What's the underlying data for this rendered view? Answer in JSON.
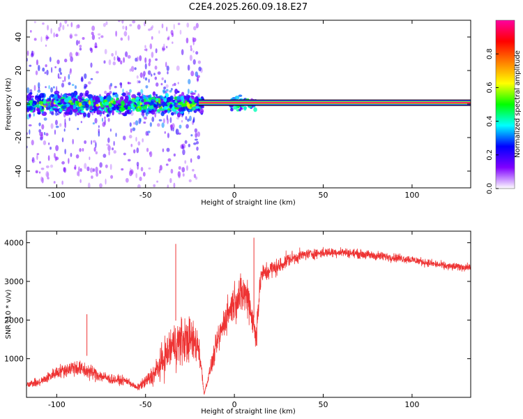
{
  "title": "C2E4.2025.260.09.18.E27",
  "chart_data": [
    {
      "type": "heatmap",
      "xlabel": "Height of straight line (km)",
      "ylabel": "Frequency (Hz)",
      "xlim": [
        -117,
        133
      ],
      "ylim": [
        -50,
        50
      ],
      "xticks": [
        -100,
        -50,
        0,
        50,
        100
      ],
      "yticks": [
        -40,
        -20,
        0,
        20,
        40
      ],
      "colorbar": {
        "label": "Normalized spectral amplitude",
        "range": [
          0,
          1
        ],
        "ticks": [
          0,
          0.2,
          0.4,
          0.6,
          0.8
        ],
        "tick_labels": [
          "0.0",
          "0.2",
          "0.4",
          "0.6",
          "0.8"
        ],
        "colormap": "rainbow",
        "colors": [
          "#ffffff",
          "#8000ff",
          "#0000ff",
          "#00ffff",
          "#00ff00",
          "#ffff00",
          "#ff8000",
          "#ff0000",
          "#ff00a0"
        ]
      },
      "features": [
        {
          "name": "tone",
          "x_range": [
            -20,
            133
          ],
          "frequency": 0.8,
          "amplitude": 1.0
        },
        {
          "name": "broadband-noise",
          "x_range": [
            -117,
            -18
          ],
          "frequency_spread": 50,
          "amplitude": 0.35
        },
        {
          "name": "low-frequency-cluster",
          "x_range": [
            -117,
            -18
          ],
          "frequency_range": [
            -8,
            8
          ],
          "amplitude": 0.6
        },
        {
          "name": "burst",
          "x_range": [
            -2,
            12
          ],
          "frequency_range": [
            -6,
            6
          ],
          "amplitude": 0.4
        }
      ]
    },
    {
      "type": "line",
      "xlabel": "Height of straight line (km)",
      "ylabel": "SNR (10 * v/v)",
      "xlim": [
        -117,
        133
      ],
      "ylim": [
        0,
        4300
      ],
      "xticks": [
        -100,
        -50,
        0,
        50,
        100
      ],
      "yticks": [
        1000,
        2000,
        3000,
        4000
      ],
      "color": "#ee3333",
      "x": [
        -117,
        -110,
        -100,
        -90,
        -80,
        -70,
        -60,
        -55,
        -50,
        -45,
        -40,
        -35,
        -30,
        -25,
        -20,
        -17,
        -10,
        -5,
        0,
        5,
        8,
        12,
        15,
        20,
        25,
        30,
        40,
        50,
        60,
        70,
        80,
        90,
        100,
        110,
        120,
        133
      ],
      "values": [
        350,
        380,
        650,
        780,
        640,
        470,
        420,
        240,
        400,
        600,
        980,
        1330,
        1450,
        1500,
        1320,
        90,
        1350,
        2050,
        2500,
        2700,
        2600,
        1550,
        3150,
        3300,
        3380,
        3560,
        3700,
        3740,
        3760,
        3710,
        3660,
        3620,
        3560,
        3470,
        3390,
        3360
      ],
      "noise": [
        120,
        160,
        240,
        330,
        300,
        190,
        160,
        100,
        260,
        420,
        700,
        900,
        950,
        850,
        700,
        40,
        500,
        650,
        750,
        800,
        800,
        700,
        400,
        380,
        330,
        270,
        210,
        190,
        180,
        170,
        180,
        170,
        160,
        150,
        150,
        150
      ],
      "annotations": [
        {
          "x": -83,
          "value": 2150
        },
        {
          "x": -33,
          "value": 3970
        },
        {
          "x": 11,
          "value": 4130
        }
      ]
    }
  ]
}
